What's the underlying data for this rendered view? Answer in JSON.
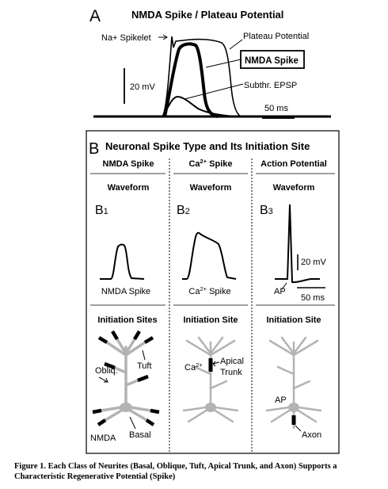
{
  "panel_a": {
    "letter": "A",
    "title": "NMDA Spike / Plateau Potential",
    "labels": {
      "na_spikelet": "Na+ Spikelet",
      "plateau": "Plateau Potential",
      "nmda_spike": "NMDA Spike",
      "subthr": "Subthr. EPSP",
      "scale_mv": "20 mV",
      "scale_ms": "50 ms"
    }
  },
  "panel_b": {
    "letter": "B",
    "title": "Neuronal Spike Type and Its Initiation Site",
    "columns": [
      {
        "header": "NMDA Spike",
        "waveform_header": "Waveform",
        "sub_letter": "B",
        "sub_index": "1",
        "trace_label": "NMDA Spike",
        "site_header": "Initiation Sites",
        "site_labels": {
          "tuft": "Tuft",
          "obliq": "Obliq.",
          "nmda": "NMDA",
          "basal": "Basal"
        }
      },
      {
        "header_main": "Ca",
        "header_sup": "2+",
        "header_rest": " Spike",
        "waveform_header": "Waveform",
        "sub_letter": "B",
        "sub_index": "2",
        "trace_main": "Ca",
        "trace_sup": "2+",
        "trace_rest": " Spike",
        "site_header": "Initiation Site",
        "site_labels": {
          "ca_main": "Ca",
          "ca_sup": "2+",
          "apical": "Apical",
          "trunk": "Trunk"
        }
      },
      {
        "header": "Action Potential",
        "waveform_header": "Waveform",
        "sub_letter": "B",
        "sub_index": "3",
        "trace_label": "AP",
        "scale_mv": "20 mV",
        "scale_ms": "50 ms",
        "site_header": "Initiation Site",
        "site_labels": {
          "ap": "AP",
          "axon": "Axon"
        }
      }
    ]
  },
  "caption": "Figure 1. Each Class of Neurites (Basal, Oblique, Tuft, Apical Trunk, and Axon) Supports a Characteristic Regenerative Potential (Spike)",
  "colors": {
    "ink": "#000000",
    "neuron_gray": "#b3b3b3",
    "background": "#ffffff"
  }
}
